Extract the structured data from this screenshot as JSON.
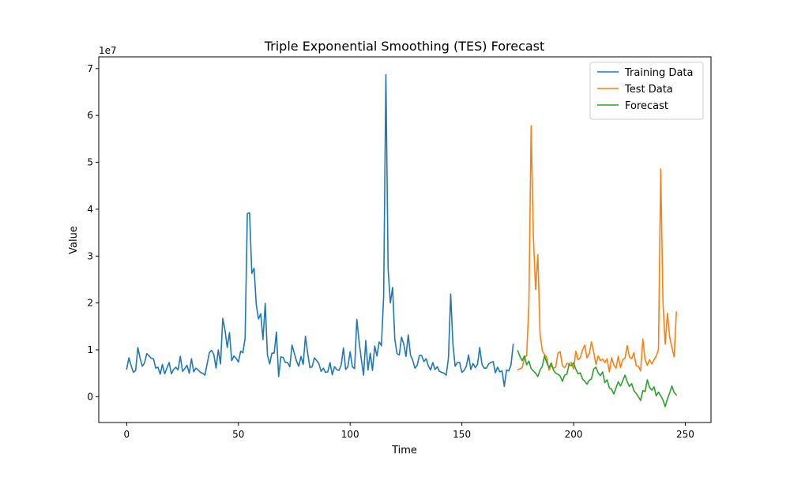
{
  "chart_data": {
    "type": "line",
    "title": "Triple Exponential Smoothing (TES) Forecast",
    "xlabel": "Time",
    "ylabel": "Value",
    "y_offset_label": "1e7",
    "xlim": [
      -12.5,
      261.5
    ],
    "ylim": [
      -0.55,
      7.25
    ],
    "y_scale": 10000000,
    "x_ticks": [
      0,
      50,
      100,
      150,
      200,
      250
    ],
    "y_ticks": [
      0,
      1,
      2,
      3,
      4,
      5,
      6,
      7
    ],
    "legend_position": "top-right",
    "grid": false,
    "series": [
      {
        "name": "Training Data",
        "color": "#1f77b4",
        "x_start": 0,
        "values": [
          0.59,
          0.83,
          0.66,
          0.52,
          0.56,
          1.05,
          0.82,
          0.65,
          0.72,
          0.92,
          0.87,
          0.82,
          0.81,
          0.61,
          0.63,
          0.48,
          0.69,
          0.49,
          0.61,
          0.73,
          0.49,
          0.58,
          0.63,
          0.57,
          0.86,
          0.54,
          0.6,
          0.67,
          0.5,
          0.81,
          0.53,
          0.61,
          0.57,
          0.52,
          0.5,
          0.46,
          0.7,
          0.94,
          0.99,
          0.9,
          0.61,
          1.0,
          0.7,
          1.67,
          1.42,
          1.05,
          1.37,
          0.77,
          0.87,
          0.82,
          0.74,
          0.97,
          0.94,
          1.25,
          3.91,
          3.92,
          2.63,
          2.74,
          1.96,
          1.66,
          1.77,
          1.22,
          1.99,
          0.89,
          0.7,
          0.93,
          0.93,
          1.38,
          0.43,
          0.85,
          0.84,
          0.73,
          0.73,
          0.64,
          1.1,
          0.93,
          0.76,
          0.65,
          0.86,
          0.69,
          1.29,
          0.93,
          0.62,
          0.64,
          0.83,
          0.77,
          0.71,
          0.54,
          0.61,
          0.52,
          0.53,
          0.73,
          0.47,
          0.64,
          0.58,
          0.56,
          0.68,
          1.04,
          0.58,
          0.64,
          0.96,
          0.64,
          0.6,
          1.65,
          1.18,
          0.8,
          0.46,
          1.2,
          0.57,
          0.93,
          0.56,
          1.08,
          0.87,
          1.17,
          1.09,
          2.14,
          6.87,
          2.72,
          2.0,
          2.33,
          1.22,
          0.92,
          0.89,
          1.27,
          1.12,
          0.86,
          1.32,
          0.89,
          0.78,
          0.61,
          0.67,
          0.88,
          0.88,
          0.75,
          0.81,
          0.66,
          0.57,
          0.73,
          0.58,
          0.64,
          0.54,
          0.52,
          0.5,
          0.46,
          0.83,
          2.19,
          1.13,
          0.65,
          0.73,
          0.73,
          0.52,
          0.56,
          0.65,
          0.89,
          0.58,
          0.71,
          0.62,
          0.69,
          1.05,
          0.69,
          0.61,
          0.61,
          0.7,
          0.73,
          0.75,
          0.51,
          0.63,
          0.53,
          0.55,
          0.22,
          0.57,
          0.55,
          0.68,
          1.12
        ]
      },
      {
        "name": "Test Data",
        "color": "#ff7f0e",
        "x_start": 175,
        "values": [
          0.58,
          0.59,
          0.62,
          0.83,
          0.88,
          1.97,
          5.78,
          3.41,
          2.29,
          3.03,
          1.34,
          0.98,
          0.9,
          0.84,
          0.57,
          0.66,
          0.61,
          0.63,
          0.93,
          0.96,
          0.66,
          0.62,
          0.71,
          0.7,
          0.73,
          0.59,
          0.97,
          0.79,
          0.83,
          1.0,
          1.1,
          0.83,
          0.91,
          1.17,
          0.95,
          0.69,
          0.87,
          0.77,
          0.8,
          0.73,
          0.81,
          0.53,
          0.83,
          0.68,
          0.61,
          0.86,
          0.62,
          0.79,
          0.82,
          1.09,
          0.85,
          0.81,
          0.94,
          0.66,
          0.65,
          0.55,
          1.23,
          0.79,
          0.67,
          0.79,
          0.7,
          0.79,
          0.87,
          1.01,
          4.86,
          2.01,
          1.12,
          1.78,
          1.27,
          1.05,
          0.85,
          1.81
        ]
      },
      {
        "name": "Forecast",
        "color": "#2ca02c",
        "x_start": 175,
        "values": [
          0.98,
          0.86,
          0.77,
          0.87,
          0.68,
          0.76,
          0.6,
          0.55,
          0.5,
          0.43,
          0.57,
          0.65,
          0.87,
          0.73,
          0.62,
          0.72,
          0.57,
          0.5,
          0.48,
          0.44,
          0.33,
          0.46,
          0.48,
          0.69,
          0.66,
          0.72,
          0.59,
          0.49,
          0.51,
          0.38,
          0.33,
          0.27,
          0.35,
          0.38,
          0.59,
          0.63,
          0.51,
          0.45,
          0.53,
          0.3,
          0.36,
          0.19,
          0.16,
          0.06,
          0.19,
          0.32,
          0.23,
          0.34,
          0.46,
          0.32,
          0.22,
          0.28,
          0.13,
          0.07,
          0.0,
          -0.08,
          0.13,
          0.11,
          0.36,
          0.2,
          0.14,
          0.21,
          0.02,
          0.1,
          0.02,
          -0.07,
          -0.21,
          -0.05,
          0.08,
          0.23,
          0.09,
          0.04
        ]
      }
    ]
  }
}
